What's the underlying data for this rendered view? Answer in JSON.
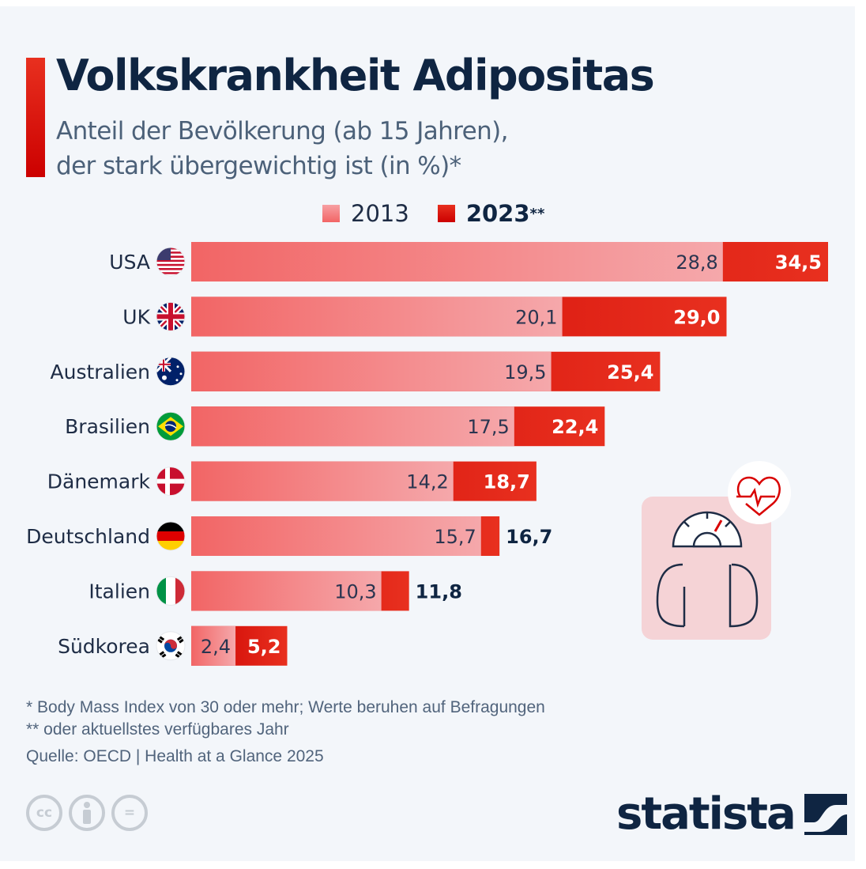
{
  "title": "Volkskrankheit Adipositas",
  "subtitle_line1": "Anteil der Bevölkerung (ab 15 Jahren),",
  "subtitle_line2": "der stark übergewichtig ist (in %)*",
  "colors": {
    "accent": "#d90000",
    "bar_2013_start": "#f26565",
    "bar_2013_end": "#f5a3a6",
    "bar_2023_start": "#cc0000",
    "bar_2023_end": "#e8301f",
    "text_dark": "#0f2542",
    "background": "#f3f6fa"
  },
  "legend": {
    "items": [
      {
        "label": "2013",
        "suffix": ""
      },
      {
        "label": "2023",
        "suffix": "**"
      }
    ]
  },
  "chart_data": {
    "type": "bar",
    "orientation": "horizontal",
    "title": "Volkskrankheit Adipositas",
    "subtitle": "Anteil der Bevölkerung (ab 15 Jahren), der stark übergewichtig ist (in %)*",
    "xlabel": "",
    "ylabel": "",
    "grid": false,
    "legend_position": "top-center",
    "categories": [
      "USA",
      "UK",
      "Australien",
      "Brasilien",
      "Dänemark",
      "Deutschland",
      "Italien",
      "Südkorea"
    ],
    "flags": [
      "us-flag",
      "uk-flag",
      "australia-flag",
      "brazil-flag",
      "denmark-flag",
      "germany-flag",
      "italy-flag",
      "south-korea-flag"
    ],
    "series": [
      {
        "name": "2013",
        "values": [
          28.8,
          20.1,
          19.5,
          17.5,
          14.2,
          15.7,
          10.3,
          2.4
        ],
        "labels": [
          "28,8",
          "20,1",
          "19,5",
          "17,5",
          "14,2",
          "15,7",
          "10,3",
          "2,4"
        ]
      },
      {
        "name": "2023**",
        "values": [
          34.5,
          29.0,
          25.4,
          22.4,
          18.7,
          16.7,
          11.8,
          5.2
        ],
        "labels": [
          "34,5",
          "29,0",
          "25,4",
          "22,4",
          "18,7",
          "16,7",
          "11,8",
          "5,2"
        ]
      }
    ],
    "xlim": [
      0,
      34.5
    ]
  },
  "footnotes": {
    "fn1": "*   Body Mass Index von 30 oder mehr; Werte beruhen auf Befragungen",
    "fn2": "** oder aktuellstes verfügbares Jahr",
    "source": "Quelle: OECD | Health at a Glance 2025"
  },
  "license_icons": [
    "cc-icon",
    "attribution-icon",
    "no-derivatives-icon"
  ],
  "license_glyphs": [
    "cc",
    "",
    "="
  ],
  "brand": "statista"
}
